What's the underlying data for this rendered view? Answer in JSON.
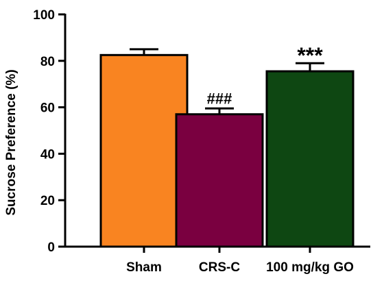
{
  "chart_data": {
    "type": "bar",
    "ylabel": "Sucrose Preference (%)",
    "ylim": [
      0,
      100
    ],
    "yticks": [
      "0",
      "20",
      "40",
      "60",
      "80",
      "100"
    ],
    "categories": [
      "Sham",
      "CRS-C",
      "100 mg/kg GO"
    ],
    "values": [
      82.5,
      57,
      75.5
    ],
    "errors": [
      2.5,
      2.5,
      3.5
    ],
    "colors": [
      "#F98421",
      "#7A0040",
      "#0E4712"
    ],
    "significance": [
      "",
      "###",
      "***"
    ],
    "grid": false,
    "legend": "none"
  }
}
